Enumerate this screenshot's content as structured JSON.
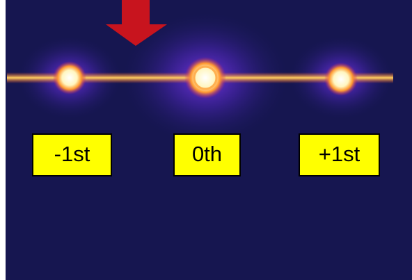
{
  "labels": [
    "-1st",
    "0th",
    "+1st"
  ]
}
